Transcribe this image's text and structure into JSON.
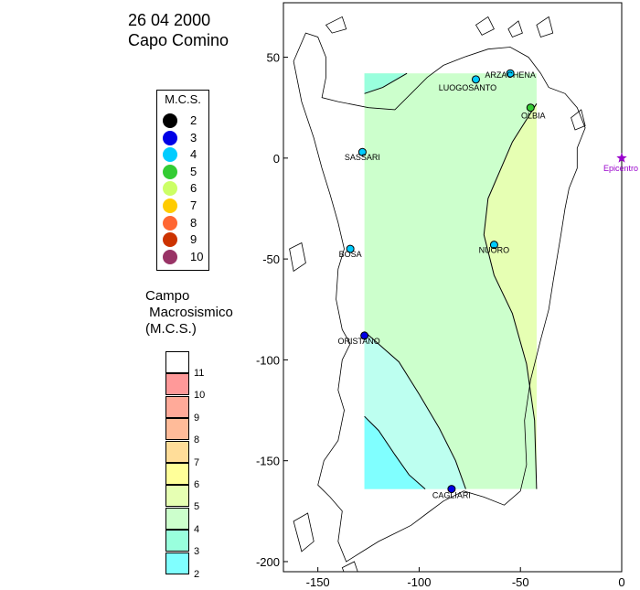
{
  "header": {
    "date": "26 04 2000",
    "place": "Capo Comino"
  },
  "legend": {
    "title": "M.C.S.",
    "items": [
      {
        "label": "2",
        "color": "#000000"
      },
      {
        "label": "3",
        "color": "#0000e6"
      },
      {
        "label": "4",
        "color": "#00ccff"
      },
      {
        "label": "5",
        "color": "#33cc33"
      },
      {
        "label": "6",
        "color": "#ccff66"
      },
      {
        "label": "7",
        "color": "#ffcc00"
      },
      {
        "label": "8",
        "color": "#ff6633"
      },
      {
        "label": "9",
        "color": "#cc3300"
      },
      {
        "label": "10",
        "color": "#993366"
      }
    ]
  },
  "scale": {
    "title_lines": [
      "Campo",
      " Macrosismico",
      "(M.C.S.)"
    ],
    "bands": [
      {
        "label": "11",
        "color": "#ffffff"
      },
      {
        "label": "10",
        "color": "#ff9999"
      },
      {
        "label": "9",
        "color": "#ffaa99"
      },
      {
        "label": "8",
        "color": "#ffbb99"
      },
      {
        "label": "7",
        "color": "#ffdd99"
      },
      {
        "label": "6",
        "color": "#ffff99"
      },
      {
        "label": "5",
        "color": "#e6ffb3"
      },
      {
        "label": "4",
        "color": "#ccffcc"
      },
      {
        "label": "3",
        "color": "#99ffdd"
      },
      {
        "label": "2",
        "color": "#80ffff"
      }
    ]
  },
  "map": {
    "x_ticks": [
      -150,
      -100,
      -50,
      0
    ],
    "y_ticks": [
      50,
      0,
      -50,
      -100,
      -150,
      -200
    ],
    "xlim": [
      -167,
      0
    ],
    "ylim": [
      -205,
      77
    ],
    "grid_region": {
      "x": [
        -127,
        -42
      ],
      "y": [
        -164,
        42
      ]
    },
    "epicenter": {
      "x": 0,
      "y": 0,
      "label": "Epicentro",
      "color": "#9900cc"
    },
    "stations": [
      {
        "name": "LUOGOSANTO",
        "x": -72,
        "y": 39,
        "intensity": 4
      },
      {
        "name": "ARZACHENA",
        "x": -55,
        "y": 42,
        "intensity": 4
      },
      {
        "name": "OLBIA",
        "x": -45,
        "y": 25,
        "intensity": 5
      },
      {
        "name": "SASSARI",
        "x": -128,
        "y": 3,
        "intensity": 4
      },
      {
        "name": "NUORO",
        "x": -63,
        "y": -43,
        "intensity": 4
      },
      {
        "name": "BOSA",
        "x": -134,
        "y": -45,
        "intensity": 4
      },
      {
        "name": "ORISTANO",
        "x": -127,
        "y": -88,
        "intensity": 3
      },
      {
        "name": "CAGLIARI",
        "x": -84,
        "y": -164,
        "intensity": 3
      }
    ]
  }
}
